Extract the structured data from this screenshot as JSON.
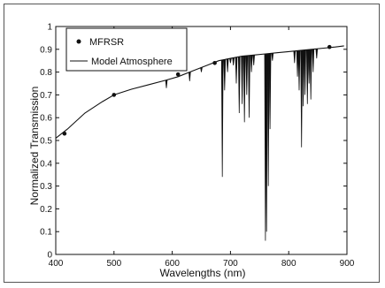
{
  "chart_data": {
    "type": "line",
    "title": "",
    "xlabel": "Wavelengths (nm)",
    "ylabel": "Normalized Transmission",
    "xlim": [
      400,
      900
    ],
    "ylim": [
      0,
      1
    ],
    "x_ticks": [
      400,
      500,
      600,
      700,
      800,
      900
    ],
    "y_ticks": [
      0,
      0.1,
      0.2,
      0.3,
      0.4,
      0.5,
      0.6,
      0.7,
      0.8,
      0.9,
      1
    ],
    "y_tick_labels": [
      "0",
      "0.1",
      "0.2",
      "0.3",
      "0.4",
      "0.5",
      "0.6",
      "0.7",
      "0.8",
      "0.9",
      "1"
    ],
    "grid": false,
    "legend_position": "top-left",
    "series": [
      {
        "name": "MFRSR",
        "kind": "scatter",
        "marker": "dot",
        "x": [
          415,
          500,
          610,
          673,
          870
        ],
        "y": [
          0.53,
          0.7,
          0.79,
          0.84,
          0.91
        ]
      },
      {
        "name": "Model Atmosphere",
        "kind": "line",
        "continuum_x": [
          400,
          420,
          450,
          480,
          500,
          530,
          560,
          590,
          610,
          640,
          660,
          680,
          700,
          720,
          740,
          760,
          780,
          800,
          820,
          840,
          860,
          880,
          895
        ],
        "continuum_y": [
          0.51,
          0.55,
          0.62,
          0.67,
          0.7,
          0.725,
          0.745,
          0.765,
          0.78,
          0.81,
          0.83,
          0.85,
          0.86,
          0.87,
          0.875,
          0.88,
          0.885,
          0.89,
          0.895,
          0.9,
          0.905,
          0.91,
          0.915
        ],
        "absorption_features": [
          {
            "x": 590,
            "min": 0.73
          },
          {
            "x": 630,
            "min": 0.76
          },
          {
            "x": 650,
            "min": 0.8
          },
          {
            "x": 686,
            "min": 0.34
          },
          {
            "x": 690,
            "min": 0.72
          },
          {
            "x": 695,
            "min": 0.8
          },
          {
            "x": 700,
            "min": 0.84
          },
          {
            "x": 705,
            "min": 0.83
          },
          {
            "x": 710,
            "min": 0.75
          },
          {
            "x": 715,
            "min": 0.62
          },
          {
            "x": 720,
            "min": 0.66
          },
          {
            "x": 724,
            "min": 0.58
          },
          {
            "x": 728,
            "min": 0.7
          },
          {
            "x": 732,
            "min": 0.6
          },
          {
            "x": 736,
            "min": 0.8
          },
          {
            "x": 740,
            "min": 0.83
          },
          {
            "x": 760,
            "min": 0.06
          },
          {
            "x": 762,
            "min": 0.1
          },
          {
            "x": 765,
            "min": 0.3
          },
          {
            "x": 768,
            "min": 0.55
          },
          {
            "x": 772,
            "min": 0.85
          },
          {
            "x": 810,
            "min": 0.84
          },
          {
            "x": 815,
            "min": 0.78
          },
          {
            "x": 818,
            "min": 0.72
          },
          {
            "x": 822,
            "min": 0.47
          },
          {
            "x": 825,
            "min": 0.65
          },
          {
            "x": 828,
            "min": 0.7
          },
          {
            "x": 832,
            "min": 0.66
          },
          {
            "x": 835,
            "min": 0.75
          },
          {
            "x": 838,
            "min": 0.68
          },
          {
            "x": 842,
            "min": 0.8
          },
          {
            "x": 848,
            "min": 0.86
          }
        ]
      }
    ]
  }
}
